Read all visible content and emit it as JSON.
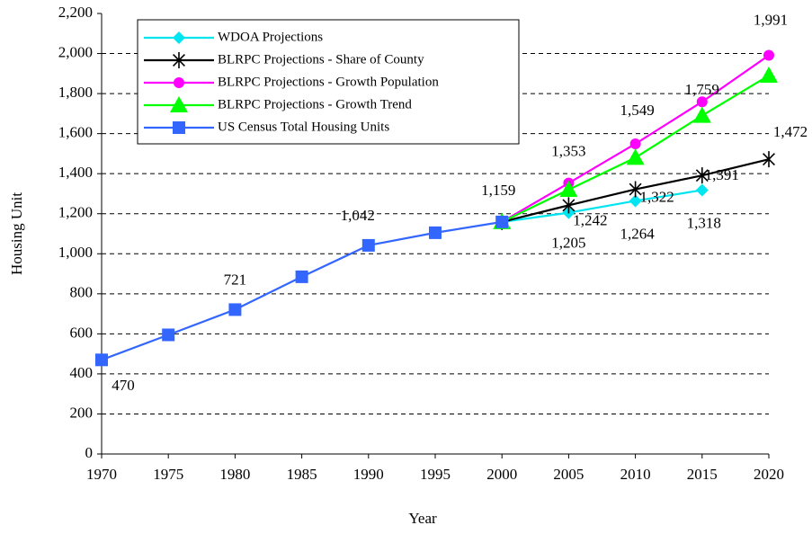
{
  "chart_data": {
    "type": "line",
    "xlabel": "Year",
    "ylabel": "Housing Unit",
    "x": [
      1970,
      1975,
      1980,
      1985,
      1990,
      1995,
      2000,
      2005,
      2010,
      2015,
      2020
    ],
    "xlim": [
      1970,
      2020
    ],
    "xticks": [
      1970,
      1975,
      1980,
      1985,
      1990,
      1995,
      2000,
      2005,
      2010,
      2015,
      2020
    ],
    "ylim": [
      0,
      2200
    ],
    "yticks": [
      0,
      200,
      400,
      600,
      800,
      {
        "value": 1000,
        "label": "1,000"
      },
      {
        "value": 1200,
        "label": "1,200"
      },
      {
        "value": 1400,
        "label": "1,400"
      },
      {
        "value": 1600,
        "label": "1,600"
      },
      {
        "value": 1800,
        "label": "1,800"
      },
      {
        "value": 2000,
        "label": "2,000"
      },
      {
        "value": 2200,
        "label": "2,200"
      }
    ],
    "grid": true,
    "legend": "upper left",
    "series": [
      {
        "name": "WDOA Projections",
        "color": "#00e5f0",
        "marker": "diamond",
        "values": [
          null,
          null,
          null,
          null,
          null,
          null,
          1159,
          1205,
          1264,
          1318,
          null
        ],
        "value_labels": [
          null,
          null,
          null,
          null,
          null,
          null,
          null,
          "1,205",
          "1,264",
          "1,318",
          null
        ]
      },
      {
        "name": "BLRPC Projections - Share of County",
        "color": "#000000",
        "marker": "star",
        "values": [
          null,
          null,
          null,
          null,
          null,
          null,
          1159,
          1242,
          1322,
          1391,
          1472
        ],
        "value_labels": [
          null,
          null,
          null,
          null,
          null,
          null,
          null,
          "1,242",
          "1,322",
          "1,391",
          "1,472"
        ]
      },
      {
        "name": "BLRPC Projections - Growth Population",
        "color": "#ff00ff",
        "marker": "circle",
        "values": [
          null,
          null,
          null,
          null,
          null,
          null,
          1159,
          1353,
          1549,
          1759,
          1991
        ],
        "value_labels": [
          null,
          null,
          null,
          null,
          null,
          null,
          null,
          "1,353",
          "1,549",
          "1,759",
          "1,991"
        ]
      },
      {
        "name": "BLRPC Projections - Growth  Trend",
        "color": "#00ff00",
        "marker": "triangle",
        "values": [
          null,
          null,
          null,
          null,
          null,
          null,
          1159,
          1320,
          1480,
          1690,
          1890
        ]
      },
      {
        "name": "US Census Total Housing Units",
        "color": "#3366ff",
        "marker": "square",
        "values": [
          470,
          595,
          721,
          885,
          1042,
          1105,
          1159,
          null,
          null,
          null,
          null
        ],
        "value_labels": [
          "470",
          null,
          "721",
          null,
          "1,042",
          null,
          "1,159",
          null,
          null,
          null,
          null
        ]
      }
    ]
  }
}
